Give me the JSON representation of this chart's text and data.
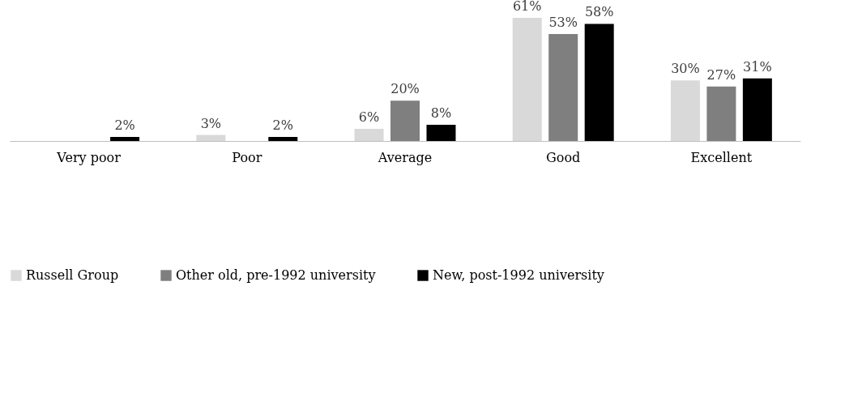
{
  "chart_data": {
    "type": "bar",
    "categories": [
      "Very poor",
      "Poor",
      "Average",
      "Good",
      "Excellent"
    ],
    "series": [
      {
        "name": "Russell Group",
        "color": "#d9d9d9",
        "values": [
          null,
          3,
          6,
          61,
          30
        ],
        "value_labels": [
          null,
          "3%",
          "6%",
          "61%",
          "30%"
        ]
      },
      {
        "name": "Other old, pre-1992 university",
        "color": "#7f7f7f",
        "values": [
          null,
          null,
          20,
          53,
          27
        ],
        "value_labels": [
          null,
          null,
          "20%",
          "53%",
          "27%"
        ]
      },
      {
        "name": "New, post-1992 university",
        "color": "#000000",
        "values": [
          2,
          2,
          8,
          58,
          31
        ],
        "value_labels": [
          "2%",
          "2%",
          "8%",
          "58%",
          "31%"
        ]
      }
    ],
    "legend": "bottom"
  }
}
